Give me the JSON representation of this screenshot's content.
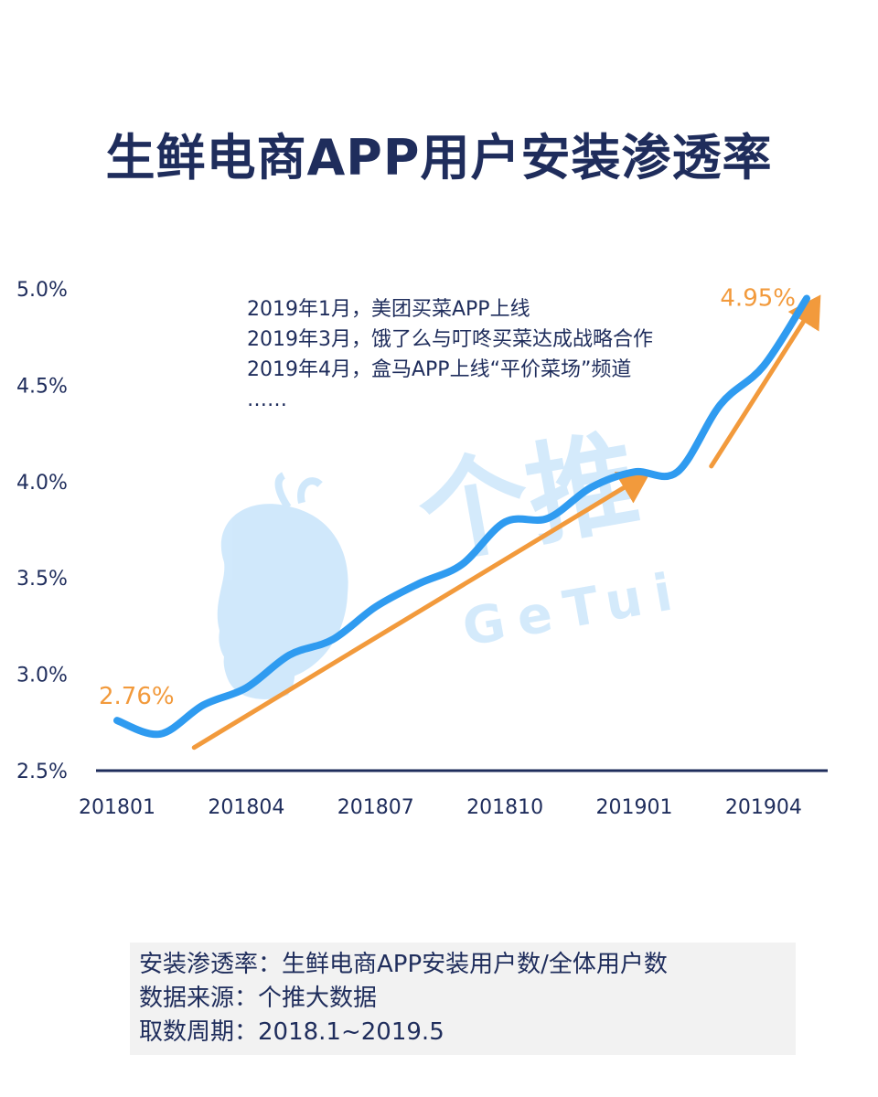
{
  "title": "生鲜电商APP用户安装渗透率",
  "watermark": {
    "brand": "个推",
    "brand_en": "GeTui"
  },
  "annotations": [
    "2019年1月，美团买菜APP上线",
    "2019年3月，饿了么与叮咚买菜达成战略合作",
    "2019年4月，盒马APP上线“平价菜场”频道",
    "……"
  ],
  "footer": {
    "line1": "安装渗透率：生鲜电商APP安装用户数/全体用户数",
    "line2": "数据来源：个推大数据",
    "line3": "取数周期：2018.1~2019.5"
  },
  "colors": {
    "line": "#2f9bf0",
    "trend": "#f29a3c",
    "text": "#1f2d5c",
    "axis": "#1f2d5c"
  },
  "chart_data": {
    "type": "line",
    "title": "生鲜电商APP用户安装渗透率",
    "x": [
      "201801",
      "201802",
      "201803",
      "201804",
      "201805",
      "201806",
      "201807",
      "201808",
      "201809",
      "201810",
      "201811",
      "201812",
      "201901",
      "201902",
      "201903",
      "201904",
      "201905"
    ],
    "x_tick_labels": [
      "201801",
      "201804",
      "201807",
      "201810",
      "201901",
      "201904"
    ],
    "ylim": [
      2.5,
      5.0
    ],
    "y_ticks": [
      2.5,
      3.0,
      3.5,
      4.0,
      4.5,
      5.0
    ],
    "y_tick_labels": [
      "2.5%",
      "3.0%",
      "3.5%",
      "4.0%",
      "4.5%",
      "5.0%"
    ],
    "series": [
      {
        "values": [
          2.76,
          2.69,
          2.84,
          2.93,
          3.1,
          3.18,
          3.35,
          3.47,
          3.57,
          3.79,
          3.81,
          3.97,
          4.05,
          4.05,
          4.4,
          4.6,
          4.95
        ]
      }
    ],
    "callouts": [
      {
        "label": "2.76%",
        "value": 2.76,
        "x": "201801"
      },
      {
        "label": "4.95%",
        "value": 4.95,
        "x": "201905"
      }
    ],
    "trend_arrows": [
      {
        "from": [
          "201803",
          2.62
        ],
        "to": [
          "201901",
          4.03
        ]
      },
      {
        "from": [
          "201903",
          4.08
        ],
        "to": [
          "201905",
          4.93
        ]
      }
    ],
    "grid": false,
    "legend": "none"
  }
}
